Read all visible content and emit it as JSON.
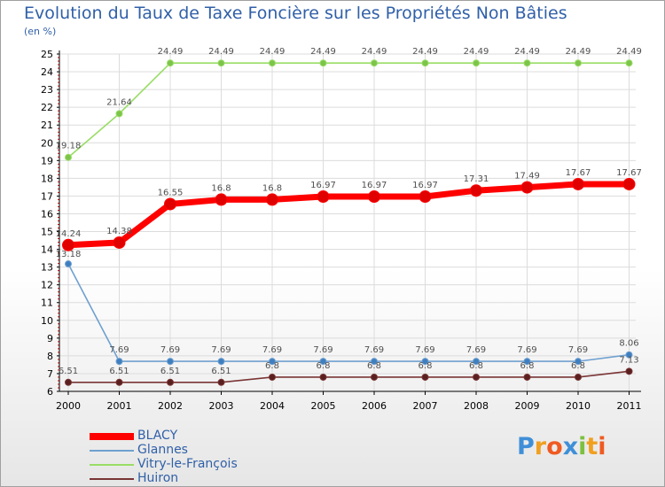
{
  "title": "Evolution du Taux de Taxe Foncière sur les Propriétés Non Bâties",
  "subtitle": "(en %)",
  "brand": "Proxiti",
  "chart_data": {
    "type": "line",
    "title": "Evolution du Taux de Taxe Foncière sur les Propriétés Non Bâties",
    "ylabel": "(en %)",
    "xlabel": "",
    "x": [
      "2000",
      "2001",
      "2002",
      "2003",
      "2004",
      "2005",
      "2006",
      "2007",
      "2008",
      "2009",
      "2010",
      "2011"
    ],
    "ylim": [
      6,
      25
    ],
    "yticks": [
      "6",
      "7",
      "8",
      "9",
      "10",
      "11",
      "12",
      "13",
      "14",
      "15",
      "16",
      "17",
      "18",
      "19",
      "20",
      "21",
      "22",
      "23",
      "24",
      "25"
    ],
    "grid": true,
    "legend_position": "bottom-left",
    "series": [
      {
        "name": "BLACY",
        "color": "#ff0000",
        "values": [
          14.24,
          14.38,
          16.55,
          16.8,
          16.8,
          16.97,
          16.97,
          16.97,
          17.31,
          17.49,
          17.67,
          17.67
        ],
        "labels": [
          "14.24",
          "14.38",
          "16.55",
          "16.8",
          "16.8",
          "16.97",
          "16.97",
          "16.97",
          "17.31",
          "17.49",
          "17.67",
          "17.67"
        ]
      },
      {
        "name": "Glannes",
        "color": "#6fa0d0",
        "values": [
          13.18,
          7.69,
          7.69,
          7.69,
          7.69,
          7.69,
          7.69,
          7.69,
          7.69,
          7.69,
          7.69,
          8.06
        ],
        "labels": [
          "13.18",
          "7.69",
          "7.69",
          "7.69",
          "7.69",
          "7.69",
          "7.69",
          "7.69",
          "7.69",
          "7.69",
          "7.69",
          "8.06"
        ]
      },
      {
        "name": "Vitry-le-François",
        "color": "#99dd66",
        "values": [
          19.18,
          21.64,
          24.49,
          24.49,
          24.49,
          24.49,
          24.49,
          24.49,
          24.49,
          24.49,
          24.49,
          24.49
        ],
        "labels": [
          "19.18",
          "21.64",
          "24.49",
          "24.49",
          "24.49",
          "24.49",
          "24.49",
          "24.49",
          "24.49",
          "24.49",
          "24.49",
          "24.49"
        ]
      },
      {
        "name": "Huiron",
        "color": "#7a3535",
        "values": [
          6.51,
          6.51,
          6.51,
          6.51,
          6.8,
          6.8,
          6.8,
          6.8,
          6.8,
          6.8,
          6.8,
          7.13
        ],
        "labels": [
          "6.51",
          "6.51",
          "6.51",
          "6.51",
          "6.8",
          "6.8",
          "6.8",
          "6.8",
          "6.8",
          "6.8",
          "6.8",
          "7.13"
        ]
      }
    ]
  }
}
